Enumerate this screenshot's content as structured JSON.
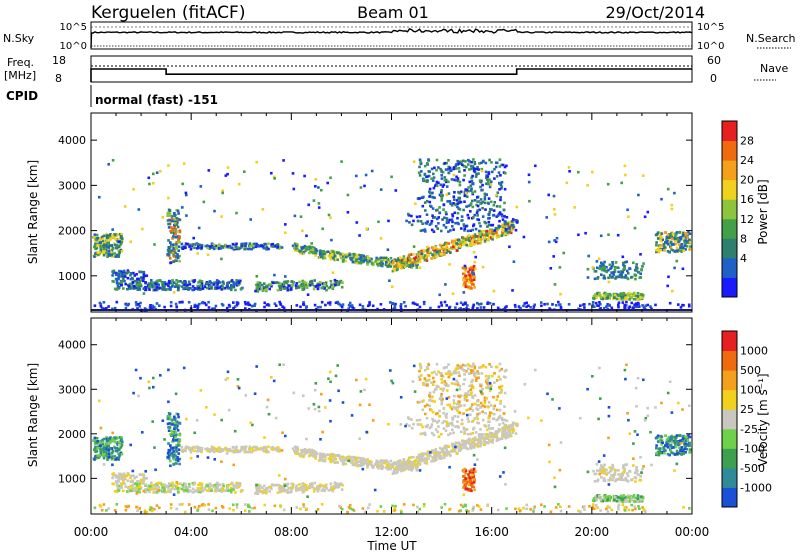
{
  "header": {
    "station": "Kerguelen (fitACF)",
    "beam": "Beam 01",
    "date": "29/Oct/2014"
  },
  "strips": {
    "nsky_label": "N.Sky",
    "nsearch_label": "N.Search",
    "nsky_ticks": [
      "10^5",
      "10^0"
    ],
    "nsearch_ticks": [
      "10^5",
      "10^0"
    ],
    "freq_label_1": "Freq.",
    "freq_label_2": "[MHz]",
    "freq_ticks": [
      "18",
      "8"
    ],
    "nave_label": "Nave",
    "nave_ticks": [
      "60",
      "0"
    ],
    "cpid_label": "CPID",
    "cpid_value": "normal (fast) -151"
  },
  "chart_data": [
    {
      "type": "heatmap",
      "name": "power",
      "ylabel": "Slant Range [km]",
      "xlabel": "",
      "ylim": [
        200,
        4600
      ],
      "yticks": [
        "4000",
        "3000",
        "2000",
        "1000"
      ],
      "colorbar_label": "Power [dB]",
      "colorbar_ticks": [
        "28",
        "24",
        "20",
        "16",
        "12",
        "8",
        "4"
      ],
      "colorbar_colors": [
        "#1a1aff",
        "#1f5fc8",
        "#2f7f6f",
        "#43a047",
        "#8cc43c",
        "#f0d21e",
        "#f5a01a",
        "#f06a10",
        "#e62020"
      ],
      "echo_regions_utc_km": [
        {
          "t": [
            0.0,
            1.2
          ],
          "r": [
            1400,
            1900
          ]
        },
        {
          "t": [
            0.8,
            6.0
          ],
          "r": [
            700,
            1100
          ]
        },
        {
          "t": [
            3.0,
            3.5
          ],
          "r": [
            1200,
            2600
          ]
        },
        {
          "t": [
            3.5,
            7.5
          ],
          "r": [
            1600,
            1800
          ]
        },
        {
          "t": [
            7.0,
            17.0
          ],
          "r": [
            1000,
            2200
          ]
        },
        {
          "t": [
            13.0,
            16.5
          ],
          "r": [
            1800,
            3600
          ]
        },
        {
          "t": [
            14.8,
            15.3
          ],
          "r": [
            700,
            1300
          ]
        },
        {
          "t": [
            20.0,
            22.0
          ],
          "r": [
            500,
            1400
          ]
        },
        {
          "t": [
            22.5,
            24.0
          ],
          "r": [
            1500,
            2000
          ]
        }
      ]
    },
    {
      "type": "heatmap",
      "name": "velocity",
      "ylabel": "Slant Range [km]",
      "xlabel": "Time UT",
      "ylim": [
        200,
        4600
      ],
      "yticks": [
        "4000",
        "3000",
        "2000",
        "1000"
      ],
      "xticks": [
        "00:00",
        "04:00",
        "08:00",
        "12:00",
        "16:00",
        "20:00",
        "00:00"
      ],
      "xlim_hours": [
        0,
        24
      ],
      "colorbar_label": "Velocity [m s⁻¹]",
      "colorbar_ticks": [
        "1000",
        "500",
        "100",
        "25",
        "-25",
        "-100",
        "-500",
        "-1000"
      ],
      "colorbar_colors": [
        "#1a4fd8",
        "#2f8a9a",
        "#3ca050",
        "#6fd04a",
        "#c8c8c0",
        "#f0d21e",
        "#f5a01a",
        "#f06a10",
        "#e62020"
      ]
    }
  ],
  "colors": {
    "ground_scatter": "#c8c8c0",
    "axis": "#000000"
  }
}
